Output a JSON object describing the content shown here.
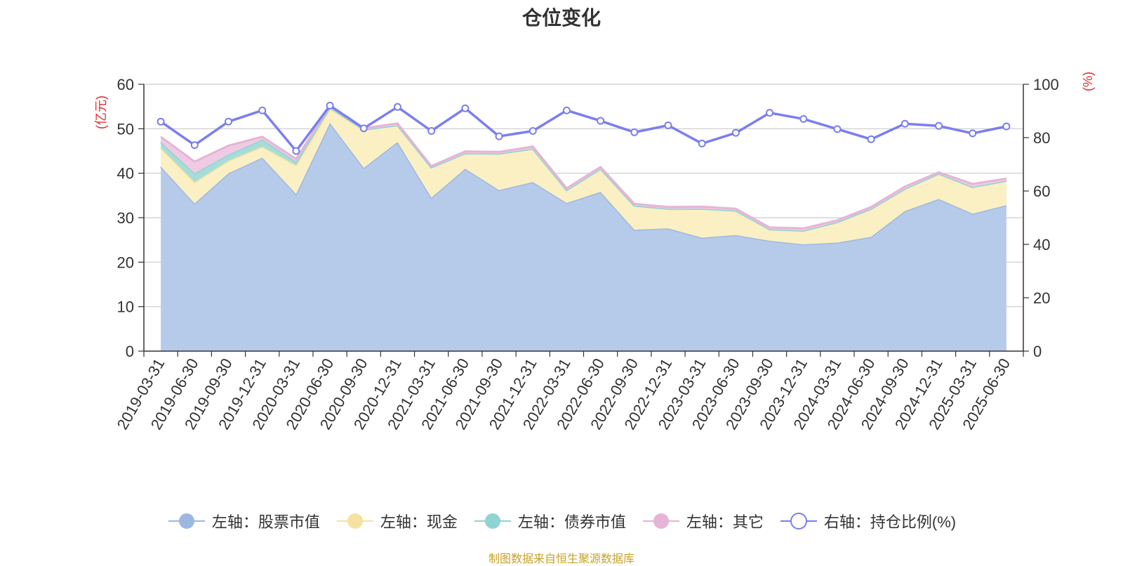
{
  "title": "仓位变化",
  "source_note": "制图数据来自恒生聚源数据库",
  "chart_data": {
    "type": "area",
    "title": "仓位变化",
    "categories": [
      "2019-03-31",
      "2019-06-30",
      "2019-09-30",
      "2019-12-31",
      "2020-03-31",
      "2020-06-30",
      "2020-09-30",
      "2020-12-31",
      "2021-03-31",
      "2021-06-30",
      "2021-09-30",
      "2021-12-31",
      "2022-03-31",
      "2022-06-30",
      "2022-09-30",
      "2022-12-31",
      "2023-03-31",
      "2023-06-30",
      "2023-09-30",
      "2023-12-31",
      "2024-03-31",
      "2024-06-30",
      "2024-09-30",
      "2024-12-31",
      "2025-03-31",
      "2025-06-30"
    ],
    "left_axis": {
      "unit": "(亿元)",
      "ylim": [
        0,
        60
      ],
      "ticks": [
        0,
        10,
        20,
        30,
        40,
        50,
        60
      ]
    },
    "right_axis": {
      "unit": "(%)",
      "ylim": [
        0,
        100
      ],
      "ticks": [
        0,
        20,
        40,
        60,
        80,
        100
      ]
    },
    "grid": true,
    "legend_position": "bottom",
    "series": [
      {
        "name": "左轴：股票市值",
        "axis": "left",
        "stacked": true,
        "kind": "area",
        "color": "#9db8e0",
        "fill": "#b6cbea",
        "values": [
          41.5,
          33.2,
          40.0,
          43.5,
          35.3,
          51.3,
          41.2,
          47.0,
          34.5,
          41.0,
          36.2,
          38.0,
          33.3,
          35.8,
          27.3,
          27.6,
          25.5,
          26.1,
          24.8,
          24.0,
          24.4,
          25.7,
          31.5,
          34.2,
          30.9,
          32.8
        ]
      },
      {
        "name": "左轴：现金",
        "axis": "left",
        "stacked": true,
        "kind": "area",
        "color": "#f5e2a0",
        "fill": "#fbefc4",
        "values": [
          4.2,
          4.8,
          2.8,
          2.5,
          6.5,
          3.2,
          8.6,
          3.8,
          6.8,
          3.5,
          8.2,
          7.5,
          2.9,
          5.2,
          5.4,
          4.4,
          6.5,
          5.5,
          2.6,
          3.1,
          4.6,
          6.3,
          5.0,
          5.7,
          6.0,
          5.5
        ]
      },
      {
        "name": "左轴：债券市值",
        "axis": "left",
        "stacked": true,
        "kind": "area",
        "color": "#8fd3d3",
        "fill": "#a8dcd9",
        "values": [
          1.3,
          2.0,
          1.4,
          1.6,
          0.8,
          0.3,
          0,
          0,
          0,
          0,
          0,
          0,
          0,
          0,
          0,
          0,
          0,
          0,
          0,
          0,
          0,
          0,
          0,
          0,
          0,
          0
        ]
      },
      {
        "name": "左轴：其它",
        "axis": "left",
        "stacked": true,
        "kind": "area",
        "color": "#e6b4d6",
        "fill": "#efcbe3",
        "values": [
          1.2,
          2.6,
          2.0,
          0.6,
          0.6,
          0.4,
          0.3,
          0.4,
          0.3,
          0.4,
          0.4,
          0.5,
          0.4,
          0.4,
          0.4,
          0.4,
          0.5,
          0.4,
          0.4,
          0.5,
          0.4,
          0.4,
          0.5,
          0.3,
          0.7,
          0.5
        ]
      },
      {
        "name": "右轴：持仓比例(%)",
        "axis": "right",
        "kind": "line",
        "color": "#7b7ef0",
        "values": [
          86.0,
          77.2,
          86.0,
          90.2,
          75.0,
          92.0,
          83.5,
          91.5,
          82.5,
          91.0,
          80.5,
          82.5,
          90.2,
          86.3,
          82.0,
          84.6,
          77.8,
          81.8,
          89.3,
          87.0,
          83.2,
          79.4,
          85.2,
          84.4,
          81.6,
          84.2
        ]
      }
    ]
  }
}
